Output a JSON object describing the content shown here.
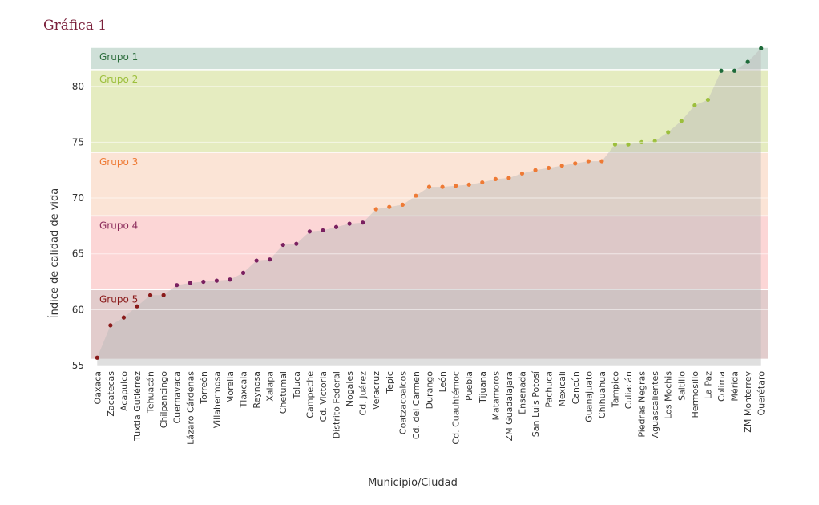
{
  "figure_label": "Gráfica 1",
  "colors": {
    "title": "#7a1f3a",
    "area": "#b9b9b9",
    "axis": "#555555"
  },
  "chart_data": {
    "type": "scatter",
    "title": "",
    "xlabel": "Municipio/Ciudad",
    "ylabel": "Índice de calidad de vida",
    "ylim": [
      55,
      83.5
    ],
    "yticks": [
      55,
      60,
      65,
      70,
      75,
      80
    ],
    "grid": false,
    "groups": [
      {
        "name": "Grupo 1",
        "range": [
          81.5,
          83.5
        ],
        "band_color": "#cfe0d8",
        "point_color": "#1e6b3a",
        "label_color": "#2e6e3e"
      },
      {
        "name": "Grupo 2",
        "range": [
          74.1,
          81.5
        ],
        "band_color": "#e5ecc0",
        "point_color": "#9cbf3c",
        "label_color": "#9cbf3c"
      },
      {
        "name": "Grupo 3",
        "range": [
          68.4,
          74.1
        ],
        "band_color": "#fbe4d6",
        "point_color": "#ee7a35",
        "label_color": "#ee7a35"
      },
      {
        "name": "Grupo 4",
        "range": [
          61.8,
          68.4
        ],
        "band_color": "#fcd6d6",
        "point_color": "#7a2060",
        "label_color": "#8a2a5a"
      },
      {
        "name": "Grupo 5",
        "range": [
          55.6,
          61.8
        ],
        "band_color": "#e2cccc",
        "point_color": "#8a1a1a",
        "label_color": "#8a1a1a"
      }
    ],
    "categories": [
      "Oaxaca",
      "Zacatecas",
      "Acapulco",
      "Tuxtla Gutiérrez",
      "Tehuacán",
      "Chilpancingo",
      "Cuernavaca",
      "Lázaro Cárdenas",
      "Torreón",
      "Villahermosa",
      "Morelia",
      "Tlaxcala",
      "Reynosa",
      "Xalapa",
      "Chetumal",
      "Toluca",
      "Campeche",
      "Cd. Victoria",
      "Distrito Federal",
      "Nogales",
      "Cd. Juárez",
      "Veracruz",
      "Tepic",
      "Coatzacoalcos",
      "Cd. del Carmen",
      "Durango",
      "León",
      "Cd. Cuauhtémoc",
      "Puebla",
      "Tijuana",
      "Matamoros",
      "ZM Guadalajara",
      "Ensenada",
      "San Luis Potosí",
      "Pachuca",
      "Mexicali",
      "Cancún",
      "Guanajuato",
      "Chihuahua",
      "Tampico",
      "Culiacán",
      "Piedras Negras",
      "Aguascalientes",
      "Los Mochis",
      "Saltillo",
      "Hermosillo",
      "La Paz",
      "Colima",
      "Mérida",
      "ZM Monterrey",
      "Querétaro"
    ],
    "values": [
      55.7,
      58.6,
      59.3,
      60.3,
      61.3,
      61.3,
      62.2,
      62.4,
      62.5,
      62.6,
      62.7,
      63.3,
      64.4,
      64.5,
      65.8,
      65.9,
      67.0,
      67.1,
      67.4,
      67.7,
      67.8,
      69.0,
      69.2,
      69.4,
      70.2,
      71.0,
      71.0,
      71.1,
      71.2,
      71.4,
      71.7,
      71.8,
      72.2,
      72.5,
      72.7,
      72.9,
      73.1,
      73.3,
      73.3,
      74.8,
      74.8,
      75.0,
      75.1,
      75.9,
      76.9,
      78.3,
      78.8,
      81.4,
      81.4,
      82.2,
      83.4
    ],
    "point_group": [
      5,
      5,
      5,
      5,
      5,
      5,
      4,
      4,
      4,
      4,
      4,
      4,
      4,
      4,
      4,
      4,
      4,
      4,
      4,
      4,
      4,
      3,
      3,
      3,
      3,
      3,
      3,
      3,
      3,
      3,
      3,
      3,
      3,
      3,
      3,
      3,
      3,
      3,
      3,
      2,
      2,
      2,
      2,
      2,
      2,
      2,
      2,
      1,
      1,
      1,
      1
    ]
  }
}
